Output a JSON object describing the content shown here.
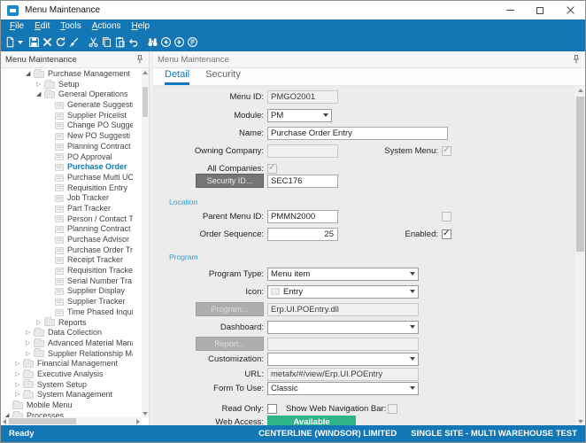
{
  "window": {
    "title": "Menu Maintenance",
    "control_icons": [
      "minimize-icon",
      "maximize-icon",
      "close-icon"
    ]
  },
  "menu_bar": {
    "items": [
      "File",
      "Edit",
      "Tools",
      "Actions",
      "Help"
    ]
  },
  "toolbar": {
    "buttons": [
      {
        "name": "new-icon"
      },
      {
        "name": "save-icon"
      },
      {
        "name": "delete-icon"
      },
      {
        "name": "refresh-icon"
      },
      {
        "name": "clear-icon"
      },
      {
        "name": "cut-icon"
      },
      {
        "name": "copy-icon"
      },
      {
        "name": "paste-icon"
      },
      {
        "name": "undo-icon"
      },
      {
        "name": "search-icon"
      },
      {
        "name": "back-icon"
      },
      {
        "name": "forward-icon"
      },
      {
        "name": "memo-icon"
      }
    ]
  },
  "left_panel": {
    "title": "Menu Maintenance",
    "pin_icon": "pin-icon",
    "tree": [
      {
        "label": "Purchase Management",
        "depth": 2,
        "state": "expanded"
      },
      {
        "label": "Setup",
        "depth": 3,
        "state": "collapsed"
      },
      {
        "label": "General Operations",
        "depth": 3,
        "state": "expanded"
      },
      {
        "label": "Generate Suggesti",
        "depth": 4,
        "state": "leaf"
      },
      {
        "label": "Supplier Pricelist",
        "depth": 4,
        "state": "leaf"
      },
      {
        "label": "Change PO Sugge",
        "depth": 4,
        "state": "leaf"
      },
      {
        "label": "New PO Suggesti",
        "depth": 4,
        "state": "leaf"
      },
      {
        "label": "Planning Contract",
        "depth": 4,
        "state": "leaf"
      },
      {
        "label": "PO Approval",
        "depth": 4,
        "state": "leaf"
      },
      {
        "label": "Purchase Order",
        "depth": 4,
        "state": "leaf",
        "selected": true
      },
      {
        "label": "Purchase Multi UO",
        "depth": 4,
        "state": "leaf"
      },
      {
        "label": "Requisition Entry",
        "depth": 4,
        "state": "leaf"
      },
      {
        "label": "Job Tracker",
        "depth": 4,
        "state": "leaf"
      },
      {
        "label": "Part Tracker",
        "depth": 4,
        "state": "leaf"
      },
      {
        "label": "Person / Contact T",
        "depth": 4,
        "state": "leaf"
      },
      {
        "label": "Planning Contract",
        "depth": 4,
        "state": "leaf"
      },
      {
        "label": "Purchase Advisor",
        "depth": 4,
        "state": "leaf"
      },
      {
        "label": "Purchase Order Tr",
        "depth": 4,
        "state": "leaf"
      },
      {
        "label": "Receipt Tracker",
        "depth": 4,
        "state": "leaf"
      },
      {
        "label": "Requisition Tracke",
        "depth": 4,
        "state": "leaf"
      },
      {
        "label": "Serial Number Tra",
        "depth": 4,
        "state": "leaf"
      },
      {
        "label": "Supplier Display",
        "depth": 4,
        "state": "leaf"
      },
      {
        "label": "Supplier Tracker",
        "depth": 4,
        "state": "leaf"
      },
      {
        "label": "Time Phased Inqui",
        "depth": 4,
        "state": "leaf"
      },
      {
        "label": "Reports",
        "depth": 3,
        "state": "collapsed"
      },
      {
        "label": "Data Collection",
        "depth": 2,
        "state": "collapsed"
      },
      {
        "label": "Advanced Material Manag",
        "depth": 2,
        "state": "collapsed"
      },
      {
        "label": "Supplier Relationship Man",
        "depth": 2,
        "state": "collapsed"
      },
      {
        "label": "Financial Management",
        "depth": 1,
        "state": "collapsed"
      },
      {
        "label": "Executive Analysis",
        "depth": 1,
        "state": "collapsed"
      },
      {
        "label": "System Setup",
        "depth": 1,
        "state": "collapsed"
      },
      {
        "label": "System Management",
        "depth": 1,
        "state": "collapsed"
      },
      {
        "label": "Mobile Menu",
        "depth": 0,
        "state": "folder"
      },
      {
        "label": "Processes",
        "depth": 0,
        "state": "expanded"
      }
    ]
  },
  "right_panel": {
    "title": "Menu Maintenance",
    "pin_icon": "pin-icon",
    "tabs": [
      {
        "label": "Detail",
        "active": true
      },
      {
        "label": "Security",
        "active": false
      }
    ]
  },
  "form": {
    "sections": {
      "location": "Location",
      "program": "Program"
    },
    "menu_id": {
      "label": "Menu ID:",
      "value": "PMGO2001"
    },
    "module": {
      "label": "Module:",
      "value": "PM"
    },
    "name": {
      "label": "Name:",
      "value": "Purchase Order Entry"
    },
    "owning_company": {
      "label": "Owning Company:",
      "value": ""
    },
    "system_menu": {
      "label": "System Menu:",
      "checked": true,
      "disabled": true
    },
    "all_companies": {
      "label": "All Companies:",
      "checked": true,
      "disabled": true
    },
    "security_id": {
      "button_label": "Security ID...",
      "value": "SEC176"
    },
    "parent_menu_id": {
      "label": "Parent Menu ID:",
      "value": "PMMN2000",
      "aux_checkbox": {
        "checked": false,
        "disabled": true
      }
    },
    "order_sequence": {
      "label": "Order Sequence:",
      "value": "25"
    },
    "enabled": {
      "label": "Enabled:",
      "checked": true,
      "disabled": false
    },
    "program_type": {
      "label": "Program Type:",
      "value": "Menu item"
    },
    "icon": {
      "label": "Icon:",
      "value": "Entry"
    },
    "program": {
      "button_label": "Program...",
      "value": "Erp.UI.POEntry.dll"
    },
    "dashboard": {
      "label": "Dashboard:",
      "value": ""
    },
    "report": {
      "button_label": "Report...",
      "value": ""
    },
    "customization": {
      "label": "Customization:",
      "value": ""
    },
    "url": {
      "label": "URL:",
      "value": "metafx/#/view/Erp.UI.POEntry"
    },
    "form_to_use": {
      "label": "Form To Use:",
      "value": "Classic"
    },
    "read_only": {
      "label": "Read Only:",
      "checked": false,
      "disabled": false
    },
    "show_web_nav_bar": {
      "label": "Show Web Navigation Bar:",
      "checked": false,
      "disabled": true
    },
    "web_access": {
      "label": "Web Access:",
      "value": "Available"
    }
  },
  "status_bar": {
    "left": "Ready",
    "company": "CENTERLINE (WINDSOR) LIMITED",
    "site": "SINGLE SITE - MULTI WAREHOUSE TEST"
  },
  "colors": {
    "chrome_blue": "#1377b6",
    "selection_blue": "#0f7ac0",
    "section_blue": "#2d9fd6",
    "badge_green": "#2eb488"
  }
}
